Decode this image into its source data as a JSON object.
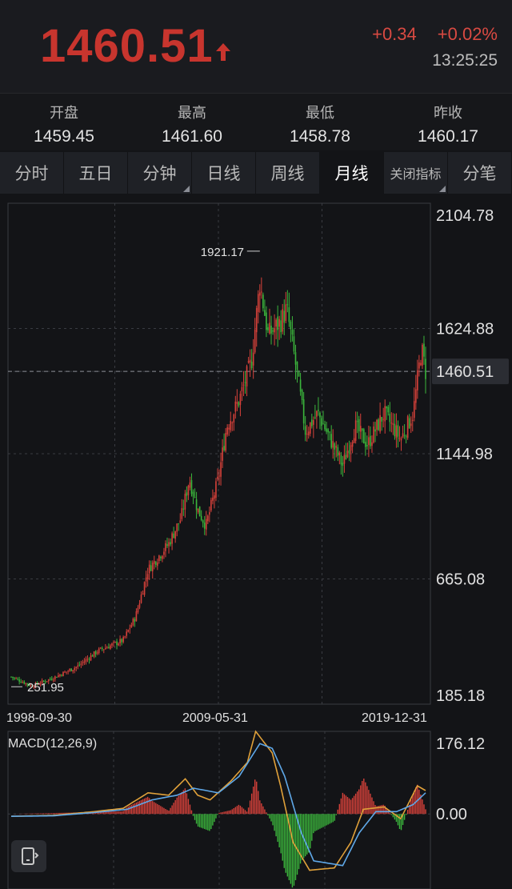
{
  "quote": {
    "price": "1460.51",
    "change": "+0.34",
    "change_pct": "+0.02%",
    "time": "13:25:25",
    "up_color": "#c8352e"
  },
  "stats": [
    {
      "label": "开盘",
      "value": "1459.45"
    },
    {
      "label": "最高",
      "value": "1461.60"
    },
    {
      "label": "最低",
      "value": "1458.78"
    },
    {
      "label": "昨收",
      "value": "1460.17"
    }
  ],
  "tabs": [
    {
      "label": "分时",
      "corner": false
    },
    {
      "label": "五日",
      "corner": false
    },
    {
      "label": "分钟",
      "corner": true
    },
    {
      "label": "日线",
      "corner": false
    },
    {
      "label": "周线",
      "corner": false
    },
    {
      "label": "月线",
      "corner": false,
      "active": true
    },
    {
      "label": "关闭指标",
      "corner": true
    },
    {
      "label": "分笔",
      "corner": false
    }
  ],
  "chart_data": {
    "type": "candlestick",
    "price_axis": [
      "2104.78",
      "1624.88",
      "1460.51",
      "1144.98",
      "665.08",
      "185.18"
    ],
    "ylim": [
      185.18,
      2104.78
    ],
    "high_label": "1921.17",
    "low_label": "251.95",
    "x_labels": [
      "1998-09-30",
      "2009-05-31",
      "2019-12-31"
    ],
    "current_price_line": 1460.51,
    "close_anchors": [
      {
        "t": 0.0,
        "v": 290
      },
      {
        "t": 0.05,
        "v": 255
      },
      {
        "t": 0.1,
        "v": 285
      },
      {
        "t": 0.16,
        "v": 330
      },
      {
        "t": 0.21,
        "v": 390
      },
      {
        "t": 0.27,
        "v": 430
      },
      {
        "t": 0.3,
        "v": 520
      },
      {
        "t": 0.33,
        "v": 700
      },
      {
        "t": 0.38,
        "v": 800
      },
      {
        "t": 0.41,
        "v": 900
      },
      {
        "t": 0.43,
        "v": 1050
      },
      {
        "t": 0.45,
        "v": 930
      },
      {
        "t": 0.47,
        "v": 870
      },
      {
        "t": 0.5,
        "v": 1050
      },
      {
        "t": 0.52,
        "v": 1250
      },
      {
        "t": 0.55,
        "v": 1350
      },
      {
        "t": 0.58,
        "v": 1500
      },
      {
        "t": 0.6,
        "v": 1800
      },
      {
        "t": 0.62,
        "v": 1600
      },
      {
        "t": 0.65,
        "v": 1650
      },
      {
        "t": 0.665,
        "v": 1700
      },
      {
        "t": 0.69,
        "v": 1450
      },
      {
        "t": 0.71,
        "v": 1230
      },
      {
        "t": 0.74,
        "v": 1300
      },
      {
        "t": 0.77,
        "v": 1200
      },
      {
        "t": 0.8,
        "v": 1100
      },
      {
        "t": 0.83,
        "v": 1250
      },
      {
        "t": 0.86,
        "v": 1180
      },
      {
        "t": 0.9,
        "v": 1300
      },
      {
        "t": 0.94,
        "v": 1200
      },
      {
        "t": 0.97,
        "v": 1300
      },
      {
        "t": 0.99,
        "v": 1550
      },
      {
        "t": 1.0,
        "v": 1460
      }
    ],
    "macd": {
      "label": "MACD(12,26,9)",
      "axis": [
        "176.12",
        "0.00"
      ],
      "ylim": [
        -160,
        176.12
      ],
      "dif_anchors": [
        {
          "t": 0.0,
          "v": -5
        },
        {
          "t": 0.1,
          "v": -3
        },
        {
          "t": 0.2,
          "v": 5
        },
        {
          "t": 0.27,
          "v": 12
        },
        {
          "t": 0.33,
          "v": 45
        },
        {
          "t": 0.38,
          "v": 40
        },
        {
          "t": 0.42,
          "v": 75
        },
        {
          "t": 0.45,
          "v": 40
        },
        {
          "t": 0.48,
          "v": 30
        },
        {
          "t": 0.53,
          "v": 70
        },
        {
          "t": 0.57,
          "v": 110
        },
        {
          "t": 0.59,
          "v": 176
        },
        {
          "t": 0.63,
          "v": 130
        },
        {
          "t": 0.65,
          "v": 60
        },
        {
          "t": 0.68,
          "v": -60
        },
        {
          "t": 0.72,
          "v": -120
        },
        {
          "t": 0.78,
          "v": -115
        },
        {
          "t": 0.82,
          "v": -60
        },
        {
          "t": 0.85,
          "v": 10
        },
        {
          "t": 0.9,
          "v": 15
        },
        {
          "t": 0.94,
          "v": -10
        },
        {
          "t": 0.98,
          "v": 60
        },
        {
          "t": 1.0,
          "v": 50
        }
      ],
      "dea_anchors": [
        {
          "t": 0.0,
          "v": -5
        },
        {
          "t": 0.1,
          "v": -4
        },
        {
          "t": 0.2,
          "v": 3
        },
        {
          "t": 0.28,
          "v": 10
        },
        {
          "t": 0.34,
          "v": 30
        },
        {
          "t": 0.4,
          "v": 40
        },
        {
          "t": 0.44,
          "v": 55
        },
        {
          "t": 0.5,
          "v": 45
        },
        {
          "t": 0.55,
          "v": 80
        },
        {
          "t": 0.6,
          "v": 150
        },
        {
          "t": 0.63,
          "v": 140
        },
        {
          "t": 0.66,
          "v": 80
        },
        {
          "t": 0.7,
          "v": -40
        },
        {
          "t": 0.73,
          "v": -100
        },
        {
          "t": 0.8,
          "v": -110
        },
        {
          "t": 0.84,
          "v": -40
        },
        {
          "t": 0.88,
          "v": 5
        },
        {
          "t": 0.93,
          "v": 5
        },
        {
          "t": 0.97,
          "v": 20
        },
        {
          "t": 1.0,
          "v": 45
        }
      ]
    }
  }
}
